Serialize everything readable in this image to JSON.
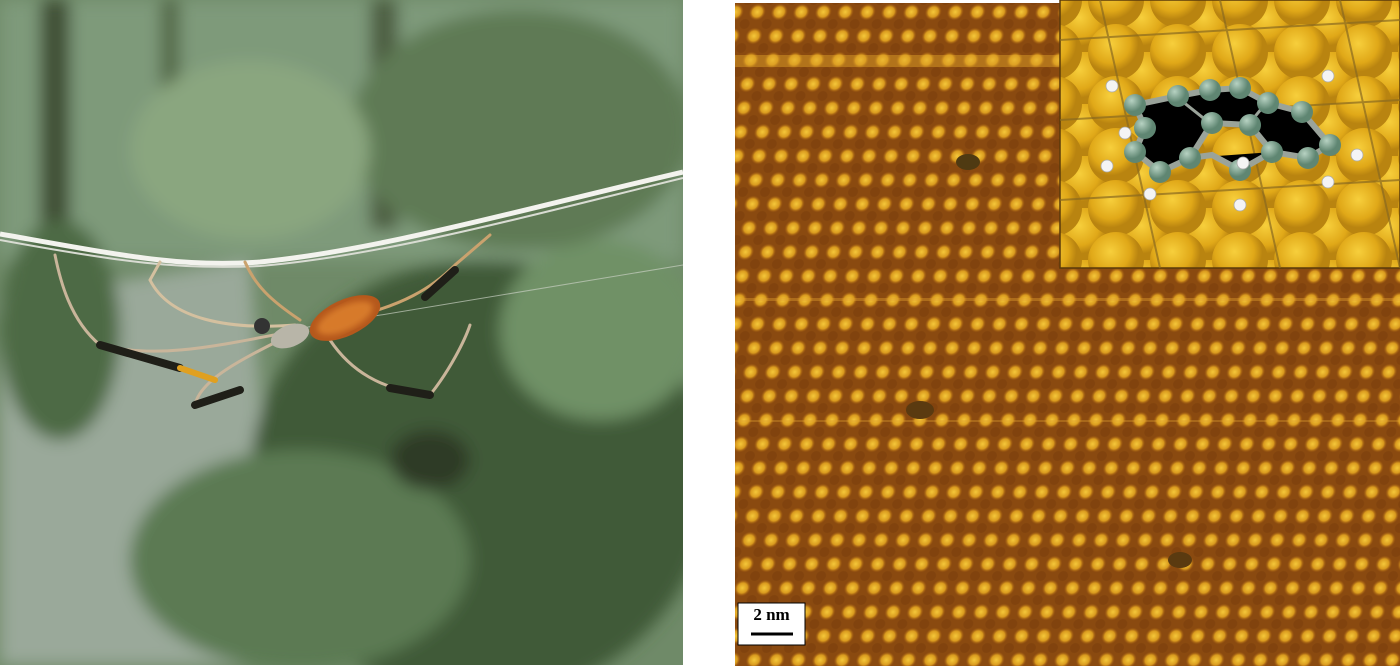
{
  "scale_bar": {
    "label": "2 nm"
  }
}
